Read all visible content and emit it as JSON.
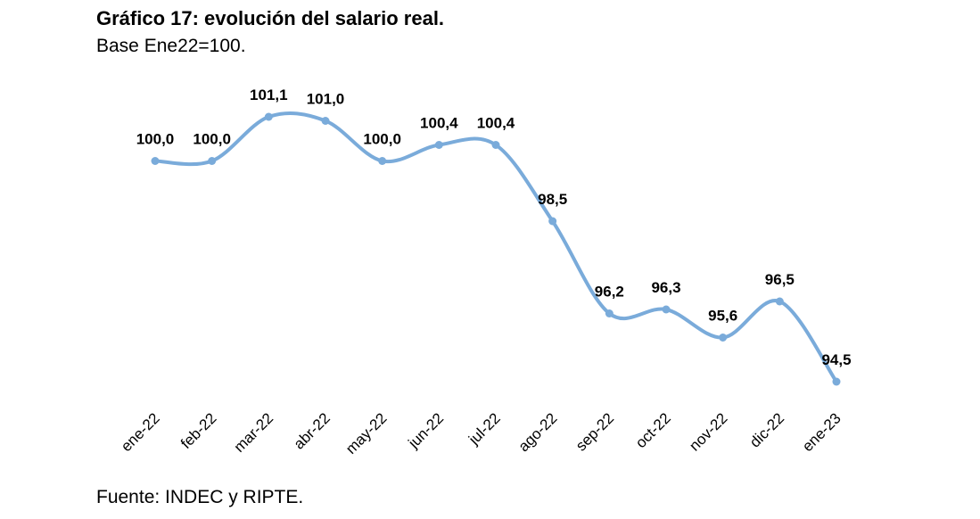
{
  "chart_data": {
    "type": "line",
    "title": "Gráfico 17: evolución del salario real.",
    "subtitle": "Base Ene22=100.",
    "source": "Fuente: INDEC y RIPTE.",
    "categories": [
      "ene-22",
      "feb-22",
      "mar-22",
      "abr-22",
      "may-22",
      "jun-22",
      "jul-22",
      "ago-22",
      "sep-22",
      "oct-22",
      "nov-22",
      "dic-22",
      "ene-23"
    ],
    "series": [
      {
        "values": [
          100.0,
          100.0,
          101.1,
          101.0,
          100.0,
          100.4,
          100.4,
          98.5,
          96.2,
          96.3,
          95.6,
          96.5,
          94.5
        ],
        "labels": [
          "100,0",
          "100,0",
          "101,1",
          "101,0",
          "100,0",
          "100,4",
          "100,4",
          "98,5",
          "96,2",
          "96,3",
          "95,6",
          "96,5",
          "94,5"
        ],
        "color": "#7aabda"
      }
    ],
    "xlabel": "",
    "ylabel": "",
    "smooth": true,
    "grid": false,
    "y_axis_visible": false
  }
}
